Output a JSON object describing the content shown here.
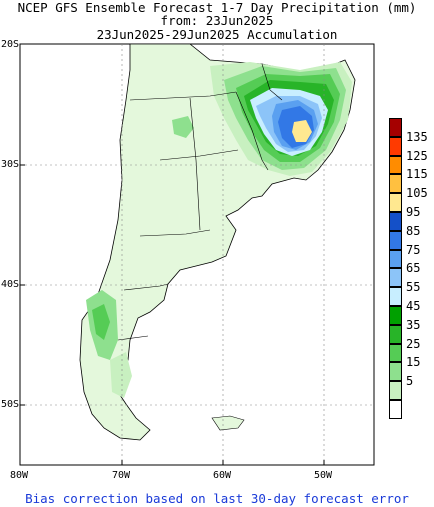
{
  "title": {
    "line1": "NCEP GFS Ensemble Forecast 1-7 Day Precipitation (mm)",
    "line2": "from: 23Jun2025",
    "line3": "23Jun2025-29Jun2025 Accumulation"
  },
  "axes": {
    "lat_labels": [
      "20S",
      "30S",
      "40S",
      "50S"
    ],
    "lon_labels": [
      "80W",
      "70W",
      "60W",
      "50W"
    ]
  },
  "legend": {
    "colors": [
      "#a50000",
      "#ff3a00",
      "#ff8c00",
      "#ffc040",
      "#ffe890",
      "#1450c8",
      "#3278e6",
      "#5aa0f0",
      "#8cc4f8",
      "#c8eeff",
      "#00a000",
      "#28b428",
      "#55cc55",
      "#8ee08e",
      "#c8f0c0",
      "#ffffff"
    ],
    "labels": [
      "135",
      "125",
      "115",
      "105",
      "95",
      "85",
      "75",
      "65",
      "55",
      "45",
      "35",
      "25",
      "15",
      "5"
    ]
  },
  "footer": "Bias correction based on last 30-day forecast error"
}
